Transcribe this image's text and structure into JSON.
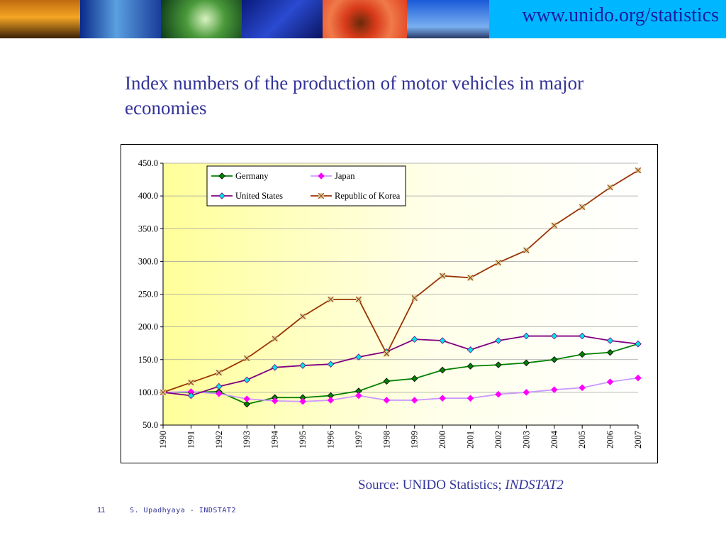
{
  "header": {
    "url": "www.unido.org/statistics"
  },
  "slide": {
    "title": "Index numbers of the production of motor vehicles in major economies",
    "source_prefix": "Source: UNIDO Statistics; ",
    "source_italic": "INDSTAT2",
    "page_number": "11",
    "footer": "S. Upadhyaya - INDSTAT2"
  },
  "colors": {
    "url_bg": "#00b7ff",
    "title": "#333399",
    "germany": "#008000",
    "japan": "#ff00ff",
    "japan_line": "#cc99ff",
    "us": "#00e5e5",
    "us_line": "#800080",
    "korea": "#993300"
  },
  "chart_data": {
    "type": "line",
    "title": "",
    "xlabel": "",
    "ylabel": "",
    "ylim": [
      50,
      450
    ],
    "yticks": [
      "50.0",
      "100.0",
      "150.0",
      "200.0",
      "250.0",
      "300.0",
      "350.0",
      "400.0",
      "450.0"
    ],
    "grid": true,
    "legend_position": "top-left",
    "categories": [
      "1990",
      "1991",
      "1992",
      "1993",
      "1994",
      "1995",
      "1996",
      "1997",
      "1998",
      "1999",
      "2000",
      "2001",
      "2002",
      "2003",
      "2004",
      "2005",
      "2006",
      "2007"
    ],
    "series": [
      {
        "name": "Germany",
        "values": [
          100,
          100,
          101,
          82,
          92,
          92,
          95,
          102,
          117,
          121,
          134,
          140,
          142,
          145,
          150,
          158,
          161,
          174
        ]
      },
      {
        "name": "Japan",
        "values": [
          100,
          101,
          98,
          90,
          87,
          86,
          88,
          95,
          88,
          88,
          91,
          91,
          97,
          100,
          104,
          107,
          116,
          122
        ]
      },
      {
        "name": "United States",
        "values": [
          100,
          95,
          109,
          119,
          138,
          141,
          143,
          154,
          162,
          181,
          179,
          165,
          179,
          186,
          186,
          186,
          179,
          174
        ]
      },
      {
        "name": "Republic of Korea",
        "values": [
          100,
          115,
          130,
          152,
          182,
          216,
          242,
          242,
          159,
          244,
          278,
          275,
          298,
          317,
          355,
          383,
          413,
          439
        ]
      }
    ]
  }
}
